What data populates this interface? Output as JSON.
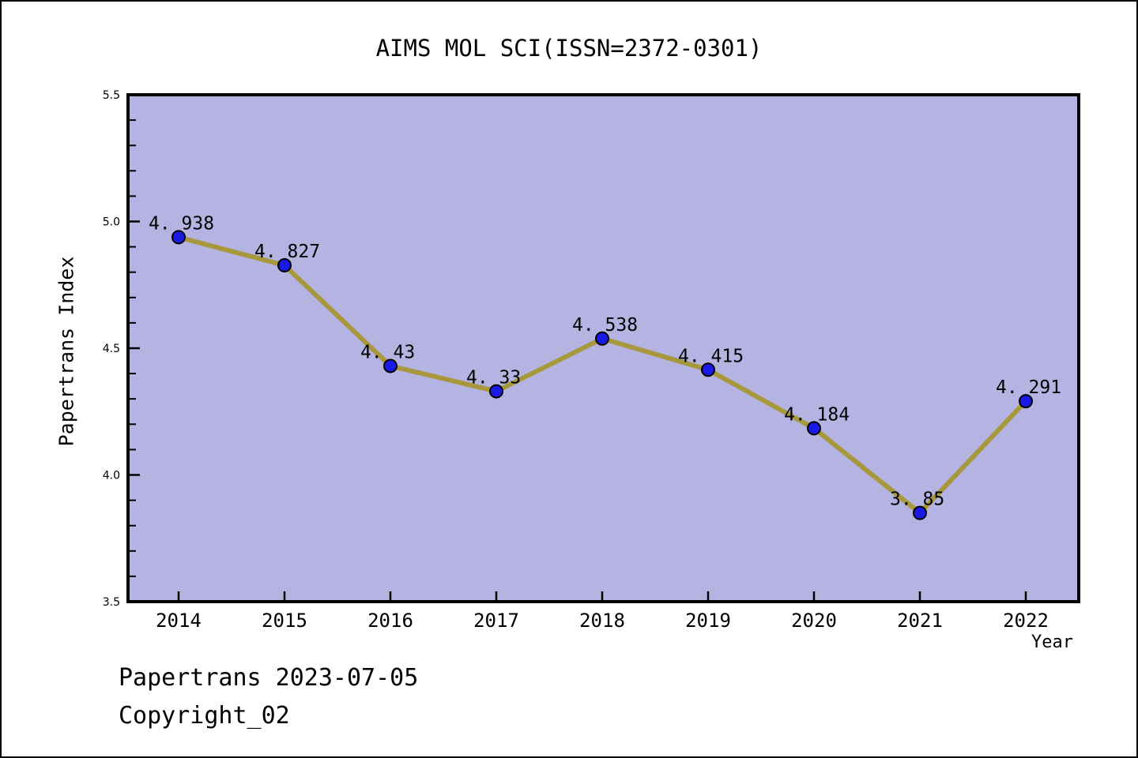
{
  "chart_data": {
    "type": "line",
    "title": "AIMS MOL SCI(ISSN=2372-0301)",
    "xlabel": "Year",
    "ylabel": "Papertrans Index",
    "categories": [
      2014,
      2015,
      2016,
      2017,
      2018,
      2019,
      2020,
      2021,
      2022
    ],
    "series": [
      {
        "name": "Papertrans Index",
        "values": [
          4.938,
          4.827,
          4.43,
          4.33,
          4.538,
          4.415,
          4.184,
          3.85,
          4.291
        ]
      }
    ],
    "point_labels": [
      "4. 938",
      "4. 827",
      "4. 43",
      "4. 33",
      "4. 538",
      "4. 415",
      "4. 184",
      "3. 85",
      "4. 291"
    ],
    "ylim": [
      3.5,
      5.5
    ],
    "yticks": [
      3.5,
      4.0,
      4.5,
      5.0,
      5.5
    ],
    "ytick_labels": [
      "3.5",
      "4.0",
      "4.5",
      "5.0",
      "5.5"
    ],
    "y_minor_step": 0.1,
    "grid": false,
    "legend_position": "none",
    "colors": {
      "page_bg": "#ffffff",
      "border": "#000000",
      "plot_bg": "#b5b3e1",
      "line": "#a8983d",
      "marker_fill": "#1a1ae6",
      "marker_edge": "#000000",
      "axis": "#000000",
      "text": "#000000"
    }
  },
  "footer": {
    "line1": "Papertrans 2023-07-05",
    "line2": "Copyright_02"
  }
}
